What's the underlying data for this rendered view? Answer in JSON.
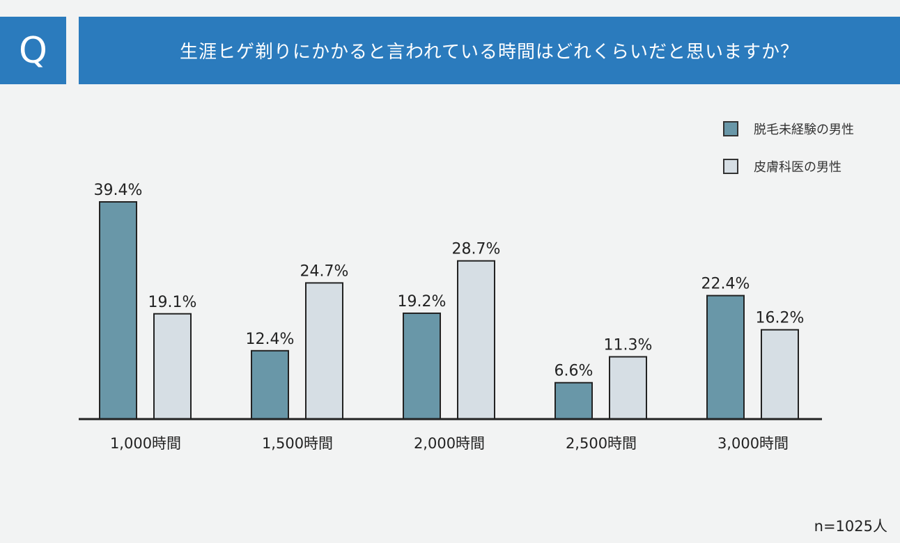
{
  "header": {
    "q_label": "Q",
    "question": "生涯ヒゲ剃りにかかると言われている時間はどれくらいだと思いますか？"
  },
  "colors": {
    "header_bg": "#2b7bbd",
    "series1": "#6997a8",
    "series2": "#d6dee4",
    "axis": "#222222"
  },
  "sample_size": "n=1025人",
  "chart_data": {
    "type": "bar",
    "categories": [
      "1,000時間",
      "1,500時間",
      "2,000時間",
      "2,500時間",
      "3,000時間"
    ],
    "series": [
      {
        "name": "脱毛未経験の男性",
        "values": [
          39.4,
          12.4,
          19.2,
          6.6,
          22.4
        ],
        "labels": [
          "39.4%",
          "12.4%",
          "19.2%",
          "6.6%",
          "22.4%"
        ]
      },
      {
        "name": "皮膚科医の男性",
        "values": [
          19.1,
          24.7,
          28.7,
          11.3,
          16.2
        ],
        "labels": [
          "19.1%",
          "24.7%",
          "28.7%",
          "11.3%",
          "16.2%"
        ]
      }
    ],
    "ylim": [
      0,
      40
    ],
    "grid": false,
    "legend_position": "top-right",
    "unit": "%"
  }
}
